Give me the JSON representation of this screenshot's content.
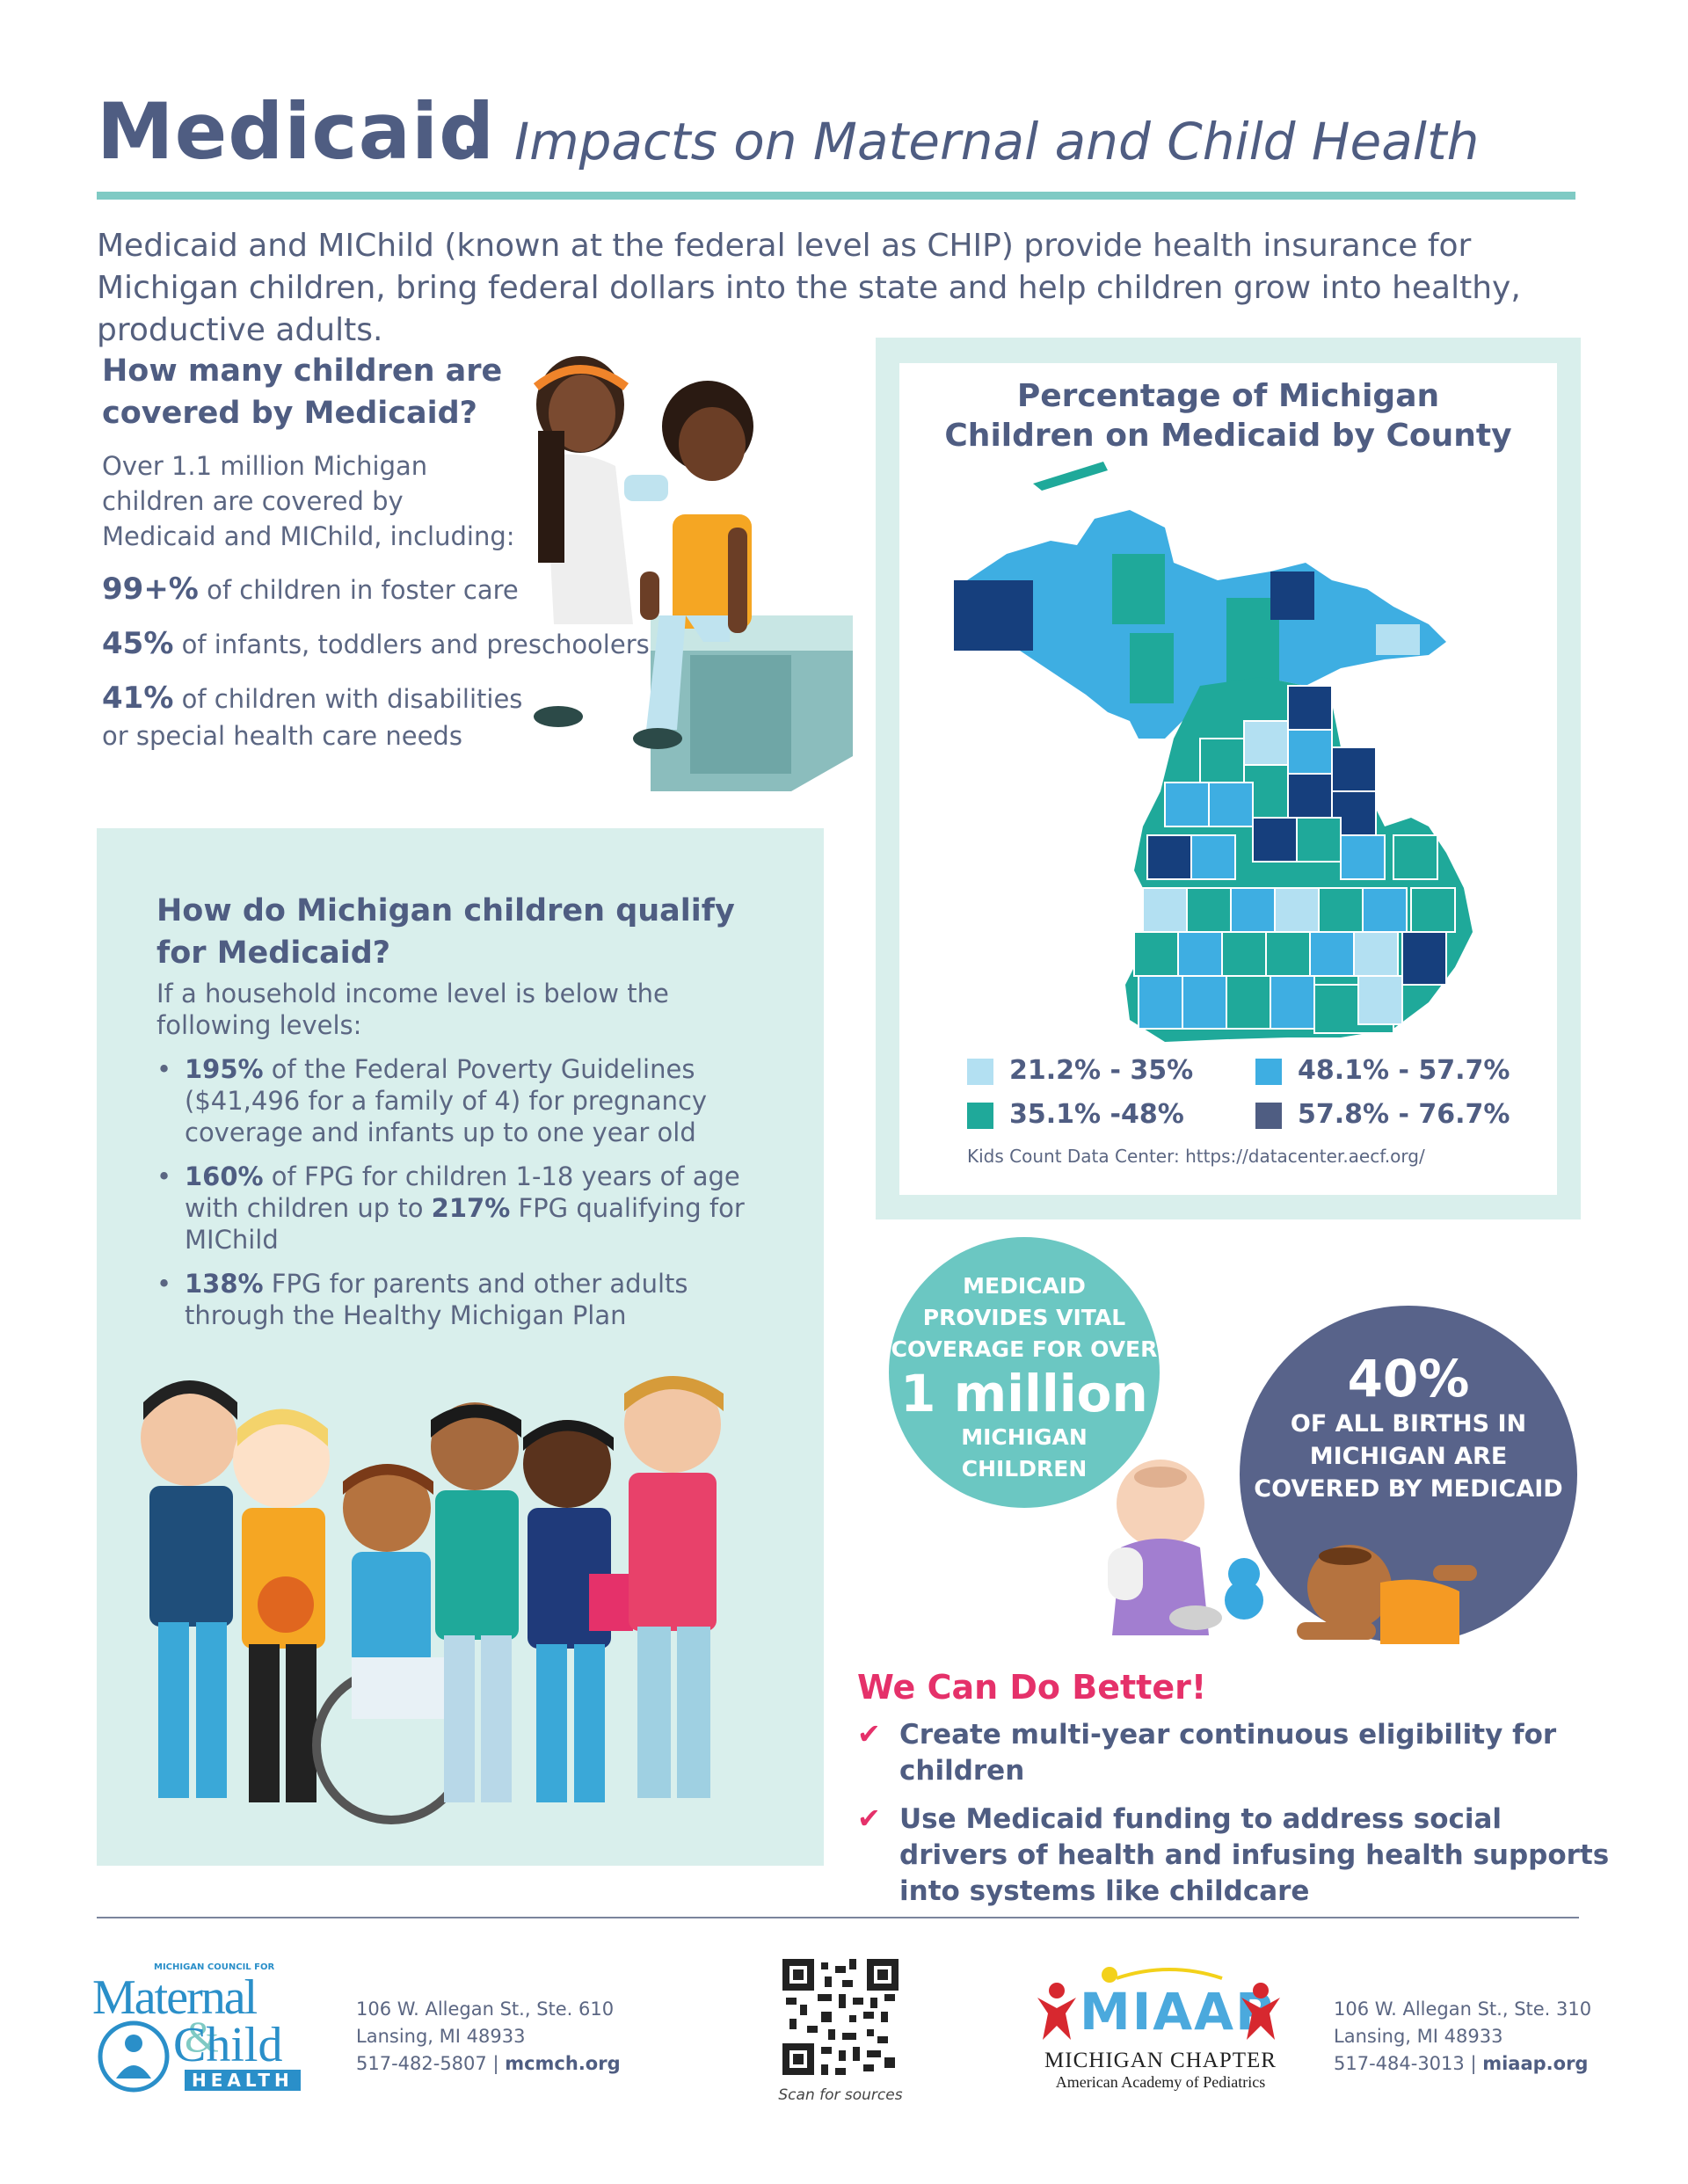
{
  "header": {
    "title": "Medicaid",
    "dash": "–",
    "subtitle": "Impacts on Maternal and Child Health",
    "intro": "Medicaid and MIChild (known at the federal level as CHIP) provide health insurance for Michigan children, bring federal dollars into the state and help children grow into healthy, productive adults."
  },
  "coverage": {
    "heading_1": "How many children are",
    "heading_2": "covered by Medicaid?",
    "body": "Over 1.1 million Michigan children are covered by Medicaid and MIChild, including:",
    "stats": [
      {
        "value": "99+%",
        "text": " of children in foster care"
      },
      {
        "value": "45%",
        "text": " of infants, toddlers and preschoolers"
      },
      {
        "value": "41%",
        "text": " of children with disabilities or special health care needs"
      }
    ]
  },
  "qualify": {
    "heading_1": "How do Michigan children qualify",
    "heading_2": "for Medicaid?",
    "intro": "If a household income level is below the following levels:",
    "items": [
      {
        "bold": "195%",
        "text": " of the Federal Poverty Guidelines ($41,496 for a family of 4) for pregnancy coverage and infants up to one year old"
      },
      {
        "bold": "160%",
        "text": " of FPG for children 1-18 years of age with children up to ",
        "bold2": "217%",
        "text2": " FPG qualifying for MIChild"
      },
      {
        "bold": "138%",
        "text": " FPG for parents and other adults through the Healthy Michigan Plan"
      }
    ]
  },
  "map": {
    "title_1": "Percentage of Michigan",
    "title_2": "Children on Medicaid by County",
    "legend": [
      {
        "label": "21.2% - 35%",
        "color": "#b3e0f2"
      },
      {
        "label": "48.1% - 57.7%",
        "color": "#3eaee2"
      },
      {
        "label": "35.1% -48%",
        "color": "#1fa99a"
      },
      {
        "label": "57.8% - 76.7%",
        "color": "#163f7d"
      }
    ],
    "source": "Kids Count Data Center: https://datacenter.aecf.org/"
  },
  "callouts": {
    "c1_line1": "MEDICAID",
    "c1_line2": "PROVIDES VITAL",
    "c1_line3": "COVERAGE FOR OVER",
    "c1_big": "1 million",
    "c1_line4": "MICHIGAN",
    "c1_line5": "CHILDREN",
    "c2_big": "40%",
    "c2_line1": "OF ALL BIRTHS IN",
    "c2_line2": "MICHIGAN ARE",
    "c2_line3": "COVERED BY MEDICAID"
  },
  "better": {
    "heading": "We Can Do Better!",
    "items": [
      "Create multi-year continuous eligibility for children",
      "Use Medicaid funding to address social drivers of health and infusing health supports into systems like childcare"
    ]
  },
  "footer": {
    "mcmch_logo_top": "MICHIGAN COUNCIL FOR",
    "mcmch_logo_1": "Maternal",
    "mcmch_logo_amp": "&",
    "mcmch_logo_2": "Child",
    "mcmch_logo_3": "HEALTH",
    "mcmch_addr_1": "106 W. Allegan St., Ste. 610",
    "mcmch_addr_2": "Lansing, MI 48933",
    "mcmch_phone": "517-482-5807",
    "mcmch_sep": "|",
    "mcmch_web": "mcmch.org",
    "qr_caption": "Scan for sources",
    "miaap_logo": "MIAAP",
    "miaap_name_1": "MICHIGAN CHAPTER",
    "miaap_name_2": "American Academy of Pediatrics",
    "miaap_addr_1": "106 W. Allegan St., Ste. 310",
    "miaap_addr_2": "Lansing, MI 48933",
    "miaap_phone": "517-484-3013",
    "miaap_sep": "|",
    "miaap_web": "miaap.org"
  }
}
